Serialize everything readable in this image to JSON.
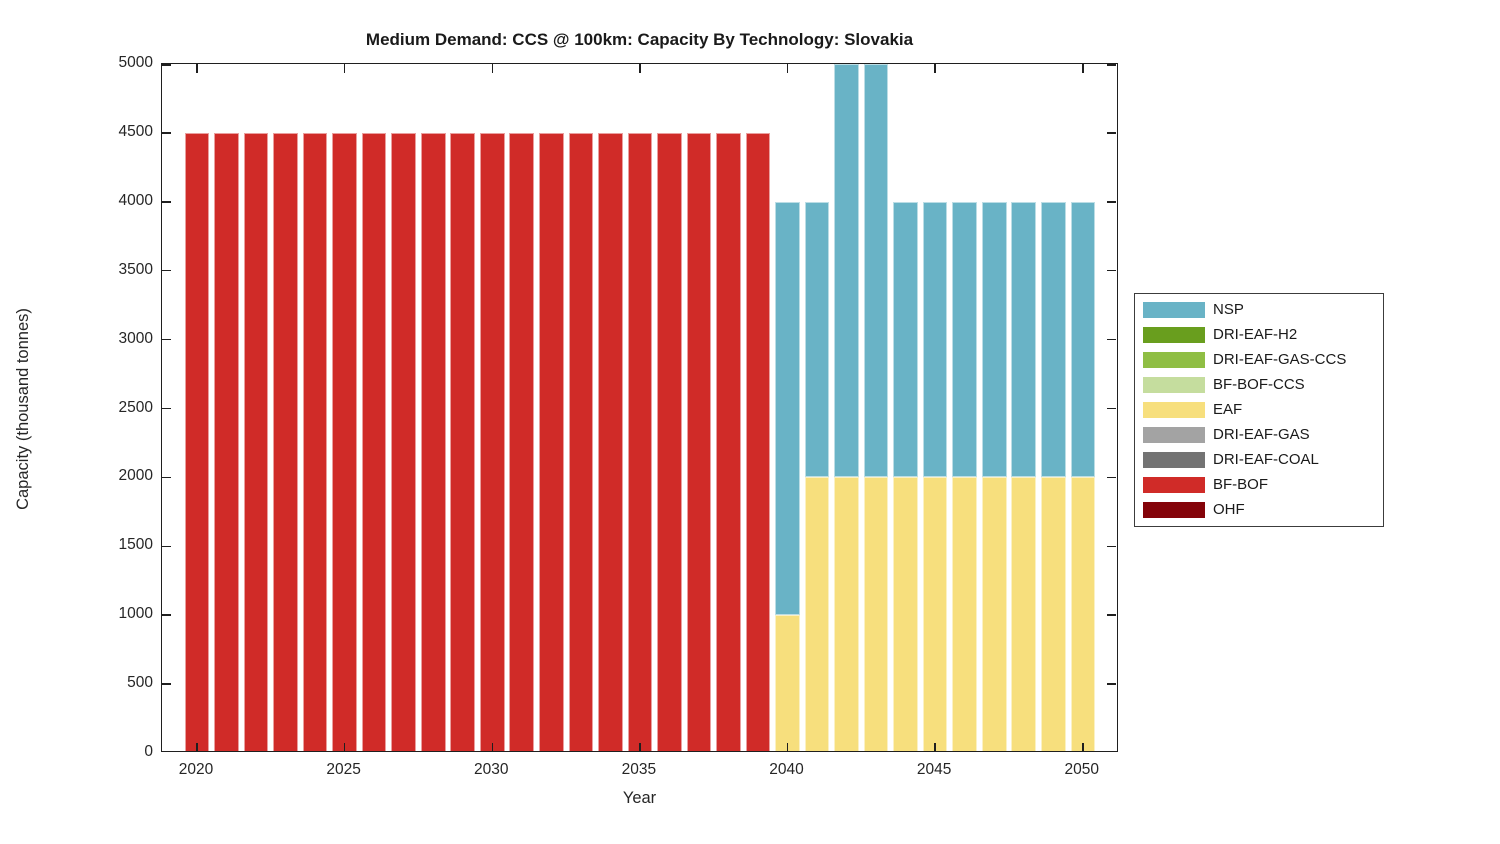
{
  "chart_data": {
    "type": "bar",
    "stacked": true,
    "title": "Medium Demand: CCS @ 100km: Capacity By Technology: Slovakia",
    "xlabel": "Year",
    "ylabel": "Capacity (thousand tonnes)",
    "ylim": [
      0,
      5000
    ],
    "yticks": [
      0,
      500,
      1000,
      1500,
      2000,
      2500,
      3000,
      3500,
      4000,
      4500,
      5000
    ],
    "xticks": [
      2020,
      2025,
      2030,
      2035,
      2040,
      2045,
      2050
    ],
    "grid": false,
    "categories": [
      2020,
      2021,
      2022,
      2023,
      2024,
      2025,
      2026,
      2027,
      2028,
      2029,
      2030,
      2031,
      2032,
      2033,
      2034,
      2035,
      2036,
      2037,
      2038,
      2039,
      2040,
      2041,
      2042,
      2043,
      2044,
      2045,
      2046,
      2047,
      2048,
      2049,
      2050
    ],
    "series": [
      {
        "name": "BF-BOF",
        "values": [
          4500,
          4500,
          4500,
          4500,
          4500,
          4500,
          4500,
          4500,
          4500,
          4500,
          4500,
          4500,
          4500,
          4500,
          4500,
          4500,
          4500,
          4500,
          4500,
          4500,
          0,
          0,
          0,
          0,
          0,
          0,
          0,
          0,
          0,
          0,
          0
        ]
      },
      {
        "name": "EAF",
        "values": [
          0,
          0,
          0,
          0,
          0,
          0,
          0,
          0,
          0,
          0,
          0,
          0,
          0,
          0,
          0,
          0,
          0,
          0,
          0,
          0,
          1000,
          2000,
          2000,
          2000,
          2000,
          2000,
          2000,
          2000,
          2000,
          2000,
          2000
        ]
      },
      {
        "name": "NSP",
        "values": [
          0,
          0,
          0,
          0,
          0,
          0,
          0,
          0,
          0,
          0,
          0,
          0,
          0,
          0,
          0,
          0,
          0,
          0,
          0,
          0,
          3000,
          2000,
          3000,
          3000,
          2000,
          2000,
          2000,
          2000,
          2000,
          2000,
          2000
        ]
      }
    ],
    "clipping_note": "NSP bars for 2042 and 2043 reach the y-axis maximum (5000) and are clipped at the top of the plot",
    "legend": {
      "position": "outside-right",
      "entries": [
        {
          "label": "NSP",
          "color": "#69b3c6"
        },
        {
          "label": "DRI-EAF-H2",
          "color": "#699e1e"
        },
        {
          "label": "DRI-EAF-GAS-CCS",
          "color": "#8fbe44"
        },
        {
          "label": "BF-BOF-CCS",
          "color": "#c5dd9e"
        },
        {
          "label": "EAF",
          "color": "#f7df7d"
        },
        {
          "label": "DRI-EAF-GAS",
          "color": "#a3a3a3"
        },
        {
          "label": "DRI-EAF-COAL",
          "color": "#737373"
        },
        {
          "label": "BF-BOF",
          "color": "#d02b28"
        },
        {
          "label": "OHF",
          "color": "#840309"
        }
      ]
    }
  }
}
